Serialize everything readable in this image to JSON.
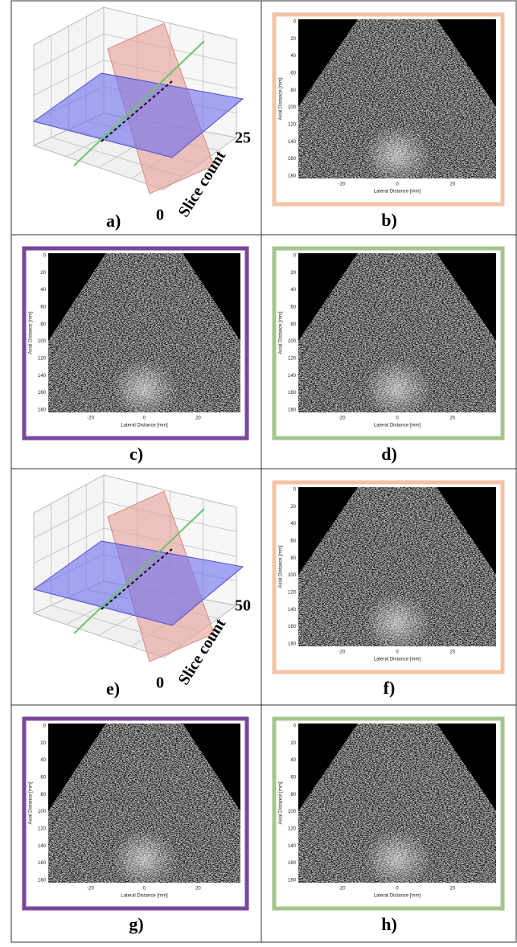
{
  "panels": [
    {
      "label": "a)",
      "kind": "plane-plot",
      "count_max": "25",
      "count_min": "0",
      "axis_label": "Slice count"
    },
    {
      "label": "b)",
      "kind": "ultrasound",
      "frame_color": "#f2c3a4"
    },
    {
      "label": "c)",
      "kind": "ultrasound",
      "frame_color": "#7b469c"
    },
    {
      "label": "d)",
      "kind": "ultrasound",
      "frame_color": "#a3c68e"
    },
    {
      "label": "e)",
      "kind": "plane-plot",
      "count_max": "50",
      "count_min": "0",
      "axis_label": "Slice count"
    },
    {
      "label": "f)",
      "kind": "ultrasound",
      "frame_color": "#f2c3a4"
    },
    {
      "label": "g)",
      "kind": "ultrasound",
      "frame_color": "#7b469c"
    },
    {
      "label": "h)",
      "kind": "ultrasound",
      "frame_color": "#a3c68e"
    }
  ],
  "ultrasound_axes": {
    "y_label": "Axial Distance [mm]",
    "x_label": "Lateral Distance [mm]",
    "yticks": [
      "0",
      "20",
      "40",
      "60",
      "80",
      "100",
      "120",
      "140",
      "160",
      "180"
    ],
    "xticks": [
      "-20",
      "0",
      "20"
    ]
  }
}
